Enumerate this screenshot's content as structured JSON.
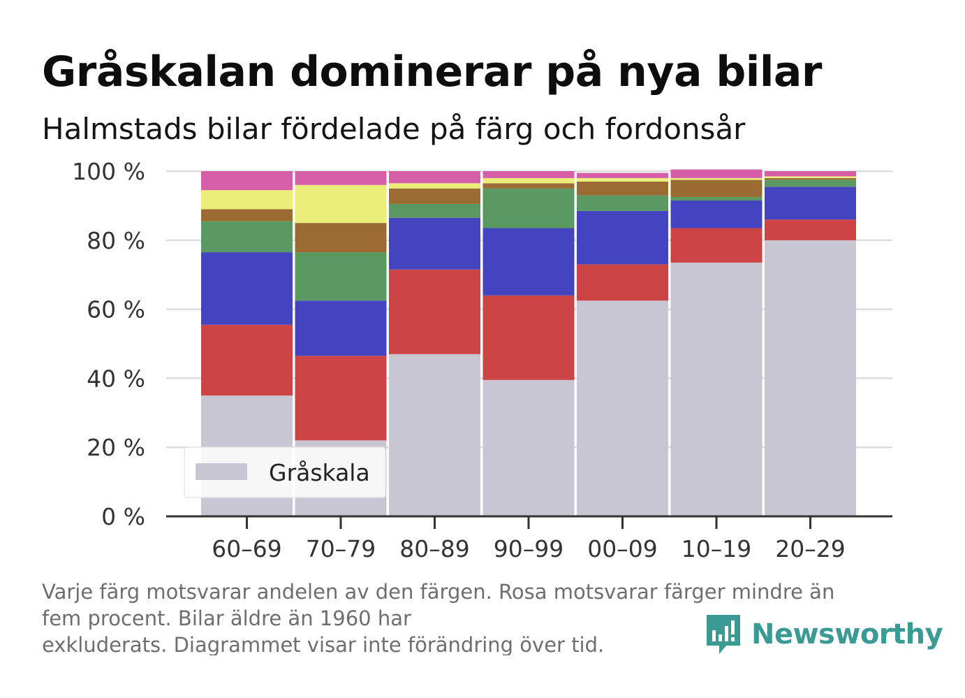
{
  "header": {
    "title": "Gråskalan dominerar på nya bilar",
    "subtitle": "Halmstads bilar fördelade på färg och fordonsår"
  },
  "footer": {
    "note_lines": [
      "Varje färg motsvarar andelen av den färgen. Rosa motsvarar färger mindre än",
      "fem procent. Bilar äldre än 1960 har",
      "exkluderats. Diagrammet visar inte förändring över tid."
    ],
    "brand": "Newsworthy",
    "brand_icon": "bar-chart-speech-bubble-icon",
    "brand_color": "#3a9a94"
  },
  "chart_data": {
    "type": "bar",
    "stacked": true,
    "categories": [
      "60–69",
      "70–79",
      "80–89",
      "90–99",
      "00–09",
      "10–19",
      "20–29"
    ],
    "series": [
      {
        "name": "Gråskala",
        "color": "#c8c6d2",
        "values": [
          35,
          22,
          47,
          39.5,
          62.5,
          73.5,
          80
        ]
      },
      {
        "color": "#cc4444",
        "values": [
          20.5,
          24.5,
          24.5,
          24.5,
          10.5,
          10,
          6
        ]
      },
      {
        "color": "#4444c0",
        "values": [
          21,
          16,
          15,
          19.5,
          15.5,
          8,
          9.5
        ]
      },
      {
        "color": "#5a9a62",
        "values": [
          9,
          14,
          4,
          11.5,
          4.5,
          1,
          2
        ]
      },
      {
        "color": "#9a6c34",
        "values": [
          3.5,
          8.5,
          4.5,
          1.5,
          4,
          5,
          0.5
        ]
      },
      {
        "color": "#ecee7a",
        "values": [
          5.5,
          11,
          1.5,
          1.5,
          1,
          0.5,
          0.5
        ]
      },
      {
        "color": "#d65ea8",
        "values": [
          5.5,
          4,
          3.5,
          2,
          1.5,
          2.5,
          1.5
        ]
      }
    ],
    "yticks": [
      "0 %",
      "20 %",
      "40 %",
      "60 %",
      "80 %",
      "100 %"
    ],
    "ylim": [
      0,
      100
    ],
    "grid": true,
    "legend": {
      "position": "bottom-left",
      "entries": [
        "Gråskala"
      ]
    }
  }
}
